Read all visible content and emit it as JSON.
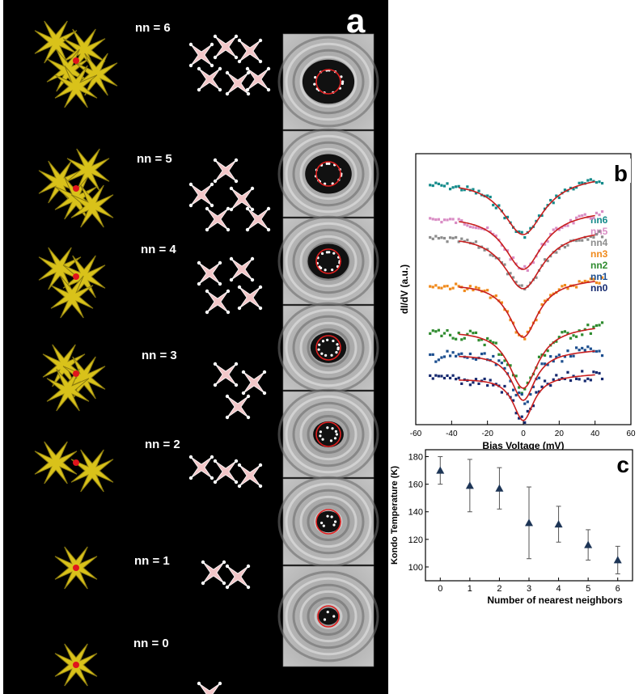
{
  "panel_a": {
    "letter": "a",
    "rows": [
      {
        "label": "nn = 6",
        "nn": 6
      },
      {
        "label": "nn = 5",
        "nn": 5
      },
      {
        "label": "nn = 4",
        "nn": 4
      },
      {
        "label": "nn = 3",
        "nn": 3
      },
      {
        "label": "nn = 2",
        "nn": 2
      },
      {
        "label": "nn = 1",
        "nn": 1
      },
      {
        "label": "nn = 0",
        "nn": 0
      }
    ]
  },
  "colors": {
    "dimer_yellow": "#d9c21a",
    "marker_red": "#e0141c",
    "molecule_pink": "#f2c6c8",
    "fit_line": "#c81e1e",
    "kondo_marker": "#1d3556"
  },
  "chart_data": [
    {
      "panel": "b",
      "type": "line",
      "xlabel": "Bias Voltage (mV)",
      "ylabel": "dI/dV (a.u.)",
      "xlim": [
        -60,
        60
      ],
      "x_ticks": [
        -60,
        -40,
        -20,
        0,
        20,
        40,
        60
      ],
      "tick_labels_visible": [
        "-60",
        "-40",
        "-20",
        "0",
        "20",
        "40",
        "60"
      ],
      "legend_position": "right",
      "series": [
        {
          "name": "nn6",
          "color": "#138a8a"
        },
        {
          "name": "nn5",
          "color": "#d98cc4"
        },
        {
          "name": "nn4",
          "color": "#8c8c8c"
        },
        {
          "name": "nn3",
          "color": "#f08a1c"
        },
        {
          "name": "nn2",
          "color": "#2e8b2e"
        },
        {
          "name": "nn1",
          "color": "#1d4f8f"
        },
        {
          "name": "nn0",
          "color": "#14286e"
        }
      ]
    },
    {
      "panel": "c",
      "type": "scatter",
      "xlabel": "Number of nearest neighbors",
      "ylabel": "Kondo Temperature (K)",
      "xlim": [
        -0.5,
        6.5
      ],
      "ylim": [
        90,
        185
      ],
      "x_ticks": [
        0,
        1,
        2,
        3,
        4,
        5,
        6
      ],
      "y_ticks": [
        100,
        120,
        140,
        160,
        180
      ],
      "x": [
        0,
        1,
        2,
        3,
        4,
        5,
        6
      ],
      "y": [
        170,
        159,
        157,
        132,
        131,
        116,
        105
      ],
      "err": [
        10,
        19,
        15,
        26,
        13,
        11,
        10
      ]
    }
  ],
  "panel_b": {
    "letter": "b"
  },
  "panel_c": {
    "letter": "c"
  }
}
